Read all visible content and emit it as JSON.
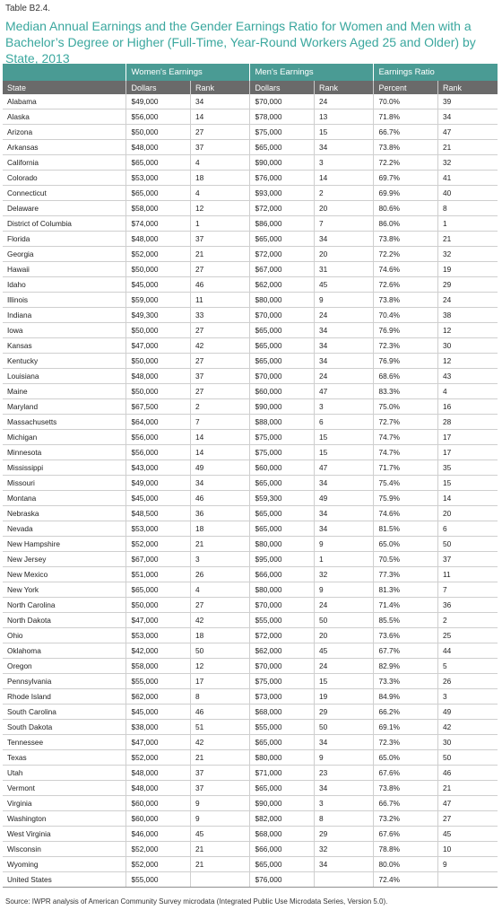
{
  "table_label": "Table B2.4.",
  "title": "Median Annual Earnings and the Gender Earnings Ratio for Women and Men with a Bachelor’s Degree or Higher (Full-Time, Year-Round Workers Aged 25 and Older) by State, 2013",
  "group_headers": [
    "Women's Earnings",
    "Men's Earnings",
    "Earnings Ratio"
  ],
  "column_headers": [
    "State",
    "Dollars",
    "Rank",
    "Dollars",
    "Rank",
    "Percent",
    "Rank"
  ],
  "rows": [
    [
      "Alabama",
      "$49,000",
      "34",
      "$70,000",
      "24",
      "70.0%",
      "39"
    ],
    [
      "Alaska",
      "$56,000",
      "14",
      "$78,000",
      "13",
      "71.8%",
      "34"
    ],
    [
      "Arizona",
      "$50,000",
      "27",
      "$75,000",
      "15",
      "66.7%",
      "47"
    ],
    [
      "Arkansas",
      "$48,000",
      "37",
      "$65,000",
      "34",
      "73.8%",
      "21"
    ],
    [
      "California",
      "$65,000",
      "4",
      "$90,000",
      "3",
      "72.2%",
      "32"
    ],
    [
      "Colorado",
      "$53,000",
      "18",
      "$76,000",
      "14",
      "69.7%",
      "41"
    ],
    [
      "Connecticut",
      "$65,000",
      "4",
      "$93,000",
      "2",
      "69.9%",
      "40"
    ],
    [
      "Delaware",
      "$58,000",
      "12",
      "$72,000",
      "20",
      "80.6%",
      "8"
    ],
    [
      "District of Columbia",
      "$74,000",
      "1",
      "$86,000",
      "7",
      "86.0%",
      "1"
    ],
    [
      "Florida",
      "$48,000",
      "37",
      "$65,000",
      "34",
      "73.8%",
      "21"
    ],
    [
      "Georgia",
      "$52,000",
      "21",
      "$72,000",
      "20",
      "72.2%",
      "32"
    ],
    [
      "Hawaii",
      "$50,000",
      "27",
      "$67,000",
      "31",
      "74.6%",
      "19"
    ],
    [
      "Idaho",
      "$45,000",
      "46",
      "$62,000",
      "45",
      "72.6%",
      "29"
    ],
    [
      "Illinois",
      "$59,000",
      "11",
      "$80,000",
      "9",
      "73.8%",
      "24"
    ],
    [
      "Indiana",
      "$49,300",
      "33",
      "$70,000",
      "24",
      "70.4%",
      "38"
    ],
    [
      "Iowa",
      "$50,000",
      "27",
      "$65,000",
      "34",
      "76.9%",
      "12"
    ],
    [
      "Kansas",
      "$47,000",
      "42",
      "$65,000",
      "34",
      "72.3%",
      "30"
    ],
    [
      "Kentucky",
      "$50,000",
      "27",
      "$65,000",
      "34",
      "76.9%",
      "12"
    ],
    [
      "Louisiana",
      "$48,000",
      "37",
      "$70,000",
      "24",
      "68.6%",
      "43"
    ],
    [
      "Maine",
      "$50,000",
      "27",
      "$60,000",
      "47",
      "83.3%",
      "4"
    ],
    [
      "Maryland",
      "$67,500",
      "2",
      "$90,000",
      "3",
      "75.0%",
      "16"
    ],
    [
      "Massachusetts",
      "$64,000",
      "7",
      "$88,000",
      "6",
      "72.7%",
      "28"
    ],
    [
      "Michigan",
      "$56,000",
      "14",
      "$75,000",
      "15",
      "74.7%",
      "17"
    ],
    [
      "Minnesota",
      "$56,000",
      "14",
      "$75,000",
      "15",
      "74.7%",
      "17"
    ],
    [
      "Mississippi",
      "$43,000",
      "49",
      "$60,000",
      "47",
      "71.7%",
      "35"
    ],
    [
      "Missouri",
      "$49,000",
      "34",
      "$65,000",
      "34",
      "75.4%",
      "15"
    ],
    [
      "Montana",
      "$45,000",
      "46",
      "$59,300",
      "49",
      "75.9%",
      "14"
    ],
    [
      "Nebraska",
      "$48,500",
      "36",
      "$65,000",
      "34",
      "74.6%",
      "20"
    ],
    [
      "Nevada",
      "$53,000",
      "18",
      "$65,000",
      "34",
      "81.5%",
      "6"
    ],
    [
      "New Hampshire",
      "$52,000",
      "21",
      "$80,000",
      "9",
      "65.0%",
      "50"
    ],
    [
      "New Jersey",
      "$67,000",
      "3",
      "$95,000",
      "1",
      "70.5%",
      "37"
    ],
    [
      "New Mexico",
      "$51,000",
      "26",
      "$66,000",
      "32",
      "77.3%",
      "11"
    ],
    [
      "New York",
      "$65,000",
      "4",
      "$80,000",
      "9",
      "81.3%",
      "7"
    ],
    [
      "North Carolina",
      "$50,000",
      "27",
      "$70,000",
      "24",
      "71.4%",
      "36"
    ],
    [
      "North Dakota",
      "$47,000",
      "42",
      "$55,000",
      "50",
      "85.5%",
      "2"
    ],
    [
      "Ohio",
      "$53,000",
      "18",
      "$72,000",
      "20",
      "73.6%",
      "25"
    ],
    [
      "Oklahoma",
      "$42,000",
      "50",
      "$62,000",
      "45",
      "67.7%",
      "44"
    ],
    [
      "Oregon",
      "$58,000",
      "12",
      "$70,000",
      "24",
      "82.9%",
      "5"
    ],
    [
      "Pennsylvania",
      "$55,000",
      "17",
      "$75,000",
      "15",
      "73.3%",
      "26"
    ],
    [
      "Rhode Island",
      "$62,000",
      "8",
      "$73,000",
      "19",
      "84.9%",
      "3"
    ],
    [
      "South Carolina",
      "$45,000",
      "46",
      "$68,000",
      "29",
      "66.2%",
      "49"
    ],
    [
      "South Dakota",
      "$38,000",
      "51",
      "$55,000",
      "50",
      "69.1%",
      "42"
    ],
    [
      "Tennessee",
      "$47,000",
      "42",
      "$65,000",
      "34",
      "72.3%",
      "30"
    ],
    [
      "Texas",
      "$52,000",
      "21",
      "$80,000",
      "9",
      "65.0%",
      "50"
    ],
    [
      "Utah",
      "$48,000",
      "37",
      "$71,000",
      "23",
      "67.6%",
      "46"
    ],
    [
      "Vermont",
      "$48,000",
      "37",
      "$65,000",
      "34",
      "73.8%",
      "21"
    ],
    [
      "Virginia",
      "$60,000",
      "9",
      "$90,000",
      "3",
      "66.7%",
      "47"
    ],
    [
      "Washington",
      "$60,000",
      "9",
      "$82,000",
      "8",
      "73.2%",
      "27"
    ],
    [
      "West Virginia",
      "$46,000",
      "45",
      "$68,000",
      "29",
      "67.6%",
      "45"
    ],
    [
      "Wisconsin",
      "$52,000",
      "21",
      "$66,000",
      "32",
      "78.8%",
      "10"
    ],
    [
      "Wyoming",
      "$52,000",
      "21",
      "$65,000",
      "34",
      "80.0%",
      "9"
    ],
    [
      "United States",
      "$55,000",
      "",
      "$76,000",
      "",
      "72.4%",
      ""
    ]
  ],
  "source": "Source: IWPR analysis of American Community Survey microdata (Integrated Public Use Microdata Series, Version 5.0).",
  "colors": {
    "title": "#3aa79e",
    "group_header_bg": "#4a9b94",
    "sub_header_bg": "#6a6a6a"
  }
}
